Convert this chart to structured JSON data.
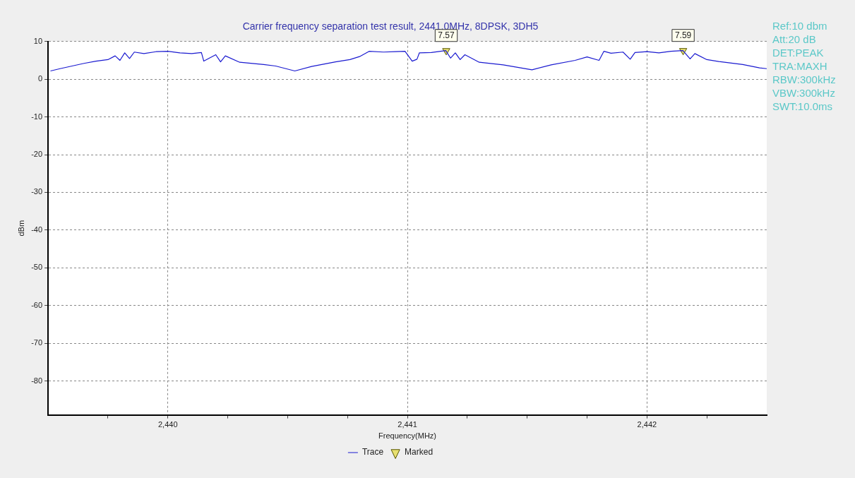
{
  "chart_data": {
    "type": "line",
    "title": "Carrier frequency separation test result, 2441.0MHz, 8DPSK, 3DH5",
    "xlabel": "Frequency(MHz)",
    "ylabel": "dBm",
    "xlim": [
      2439.5,
      2442.5
    ],
    "xticks": [
      {
        "value": 2439.75,
        "label": null
      },
      {
        "value": 2440,
        "label": "2,440"
      },
      {
        "value": 2440.25,
        "label": null
      },
      {
        "value": 2440.5,
        "label": null
      },
      {
        "value": 2440.75,
        "label": null
      },
      {
        "value": 2441,
        "label": "2,441"
      },
      {
        "value": 2441.25,
        "label": null
      },
      {
        "value": 2441.5,
        "label": null
      },
      {
        "value": 2441.75,
        "label": null
      },
      {
        "value": 2442,
        "label": "2,442"
      },
      {
        "value": 2442.25,
        "label": null
      }
    ],
    "ylim": [
      -89,
      10
    ],
    "yticks": [
      10,
      0,
      -10,
      -20,
      -30,
      -40,
      -50,
      -60,
      -70,
      -80
    ],
    "grid": true,
    "legend": "bottom",
    "line_style": "solid",
    "series": [
      {
        "name": "Trace",
        "color": "#1a1ad0",
        "marker": "none",
        "x": [
          2439.51,
          2439.55,
          2439.6,
          2439.65,
          2439.7,
          2439.75,
          2439.78,
          2439.8,
          2439.82,
          2439.84,
          2439.86,
          2439.9,
          2439.95,
          2440.0,
          2440.05,
          2440.1,
          2440.14,
          2440.15,
          2440.2,
          2440.22,
          2440.24,
          2440.3,
          2440.4,
          2440.45,
          2440.53,
          2440.6,
          2440.7,
          2440.76,
          2440.8,
          2440.84,
          2440.9,
          2440.95,
          2440.99,
          2441.02,
          2441.04,
          2441.05,
          2441.1,
          2441.16,
          2441.18,
          2441.2,
          2441.22,
          2441.24,
          2441.3,
          2441.4,
          2441.52,
          2441.6,
          2441.7,
          2441.75,
          2441.8,
          2441.82,
          2441.85,
          2441.9,
          2441.93,
          2441.95,
          2442.0,
          2442.05,
          2442.1,
          2442.15,
          2442.18,
          2442.2,
          2442.25,
          2442.3,
          2442.4,
          2442.47,
          2442.5
        ],
        "values": [
          2.2,
          2.8,
          3.5,
          4.2,
          4.8,
          5.2,
          6.2,
          5.0,
          7.0,
          5.5,
          7.2,
          6.8,
          7.3,
          7.4,
          7.0,
          6.8,
          7.1,
          4.8,
          6.5,
          4.6,
          6.2,
          4.5,
          3.9,
          3.5,
          2.2,
          3.4,
          4.6,
          5.2,
          6.0,
          7.4,
          7.2,
          7.3,
          7.4,
          4.8,
          5.3,
          7.0,
          7.1,
          7.6,
          5.6,
          7.0,
          5.2,
          6.5,
          4.5,
          3.8,
          2.5,
          3.8,
          5.0,
          5.9,
          5.0,
          7.4,
          6.9,
          7.2,
          5.3,
          7.1,
          7.3,
          7.0,
          7.4,
          7.6,
          5.4,
          6.8,
          5.2,
          4.7,
          3.9,
          3.0,
          2.8
        ]
      },
      {
        "name": "Marked",
        "type": "scatter",
        "color": "#e8e070",
        "marker": "triangle",
        "x": [
          2441.162,
          2442.151
        ],
        "values": [
          7.57,
          7.59
        ],
        "value_labels": [
          "7.57",
          "7.59"
        ]
      }
    ],
    "annotations": [
      "Ref:10 dbm",
      "Att:20 dB",
      "DET:PEAK",
      "TRA:MAXH",
      "RBW:300kHz",
      "VBW:300kHz",
      "SWT:10.0ms"
    ]
  }
}
